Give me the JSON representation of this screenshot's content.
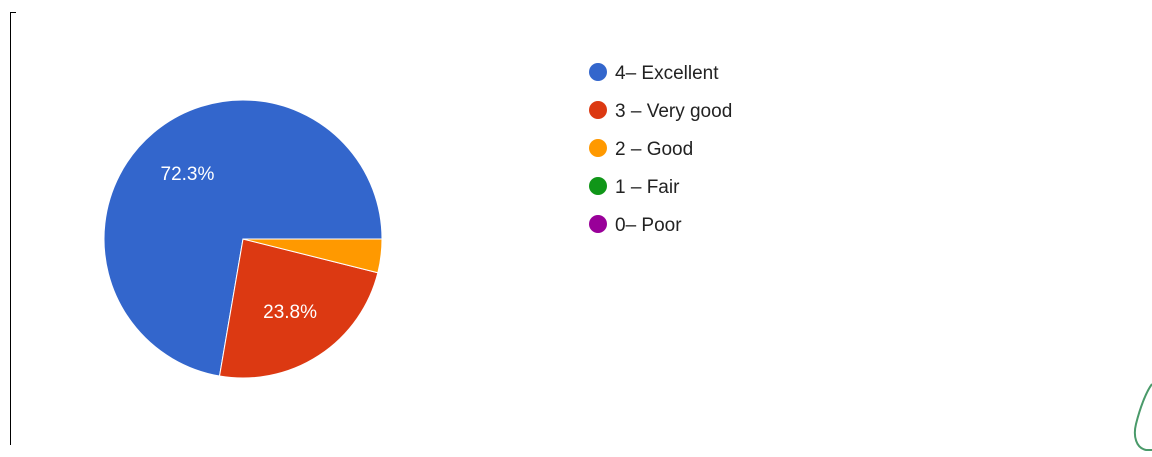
{
  "chart_data": {
    "type": "pie",
    "slices": [
      {
        "name": "4– Excellent",
        "value": 72.3,
        "label": "72.3%",
        "color": "#3366cc"
      },
      {
        "name": "3 – Very good",
        "value": 23.8,
        "label": "23.8%",
        "color": "#dc3912"
      },
      {
        "name": "2 – Good",
        "value": 3.9,
        "label": "",
        "color": "#ff9900"
      },
      {
        "name": "1 – Fair",
        "value": 0,
        "label": "",
        "color": "#109618"
      },
      {
        "name": "0– Poor",
        "value": 0,
        "label": "",
        "color": "#990099"
      }
    ],
    "legend_position": "right",
    "start_angle_deg": 0,
    "direction": "clockwise"
  }
}
